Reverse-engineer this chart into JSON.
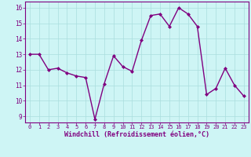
{
  "x": [
    0,
    1,
    2,
    3,
    4,
    5,
    6,
    7,
    8,
    9,
    10,
    11,
    12,
    13,
    14,
    15,
    16,
    17,
    18,
    19,
    20,
    21,
    22,
    23
  ],
  "y": [
    13.0,
    13.0,
    12.0,
    12.1,
    11.8,
    11.6,
    11.5,
    8.8,
    11.1,
    12.9,
    12.2,
    11.9,
    13.9,
    15.5,
    15.6,
    14.8,
    16.0,
    15.6,
    14.8,
    10.4,
    10.8,
    12.1,
    11.0,
    10.3
  ],
  "line_color": "#800080",
  "marker": "D",
  "marker_size": 2.0,
  "line_width": 1.0,
  "bg_color": "#cef5f5",
  "grid_color": "#aadddd",
  "xlabel": "Windchill (Refroidissement éolien,°C)",
  "xlabel_color": "#800080",
  "tick_color": "#800080",
  "spine_color": "#800080",
  "ylim": [
    8.6,
    16.4
  ],
  "yticks": [
    9,
    10,
    11,
    12,
    13,
    14,
    15,
    16
  ],
  "xlim": [
    -0.5,
    23.5
  ],
  "xlabel_fontsize": 6.0,
  "xtick_fontsize": 5.0,
  "ytick_fontsize": 5.5
}
